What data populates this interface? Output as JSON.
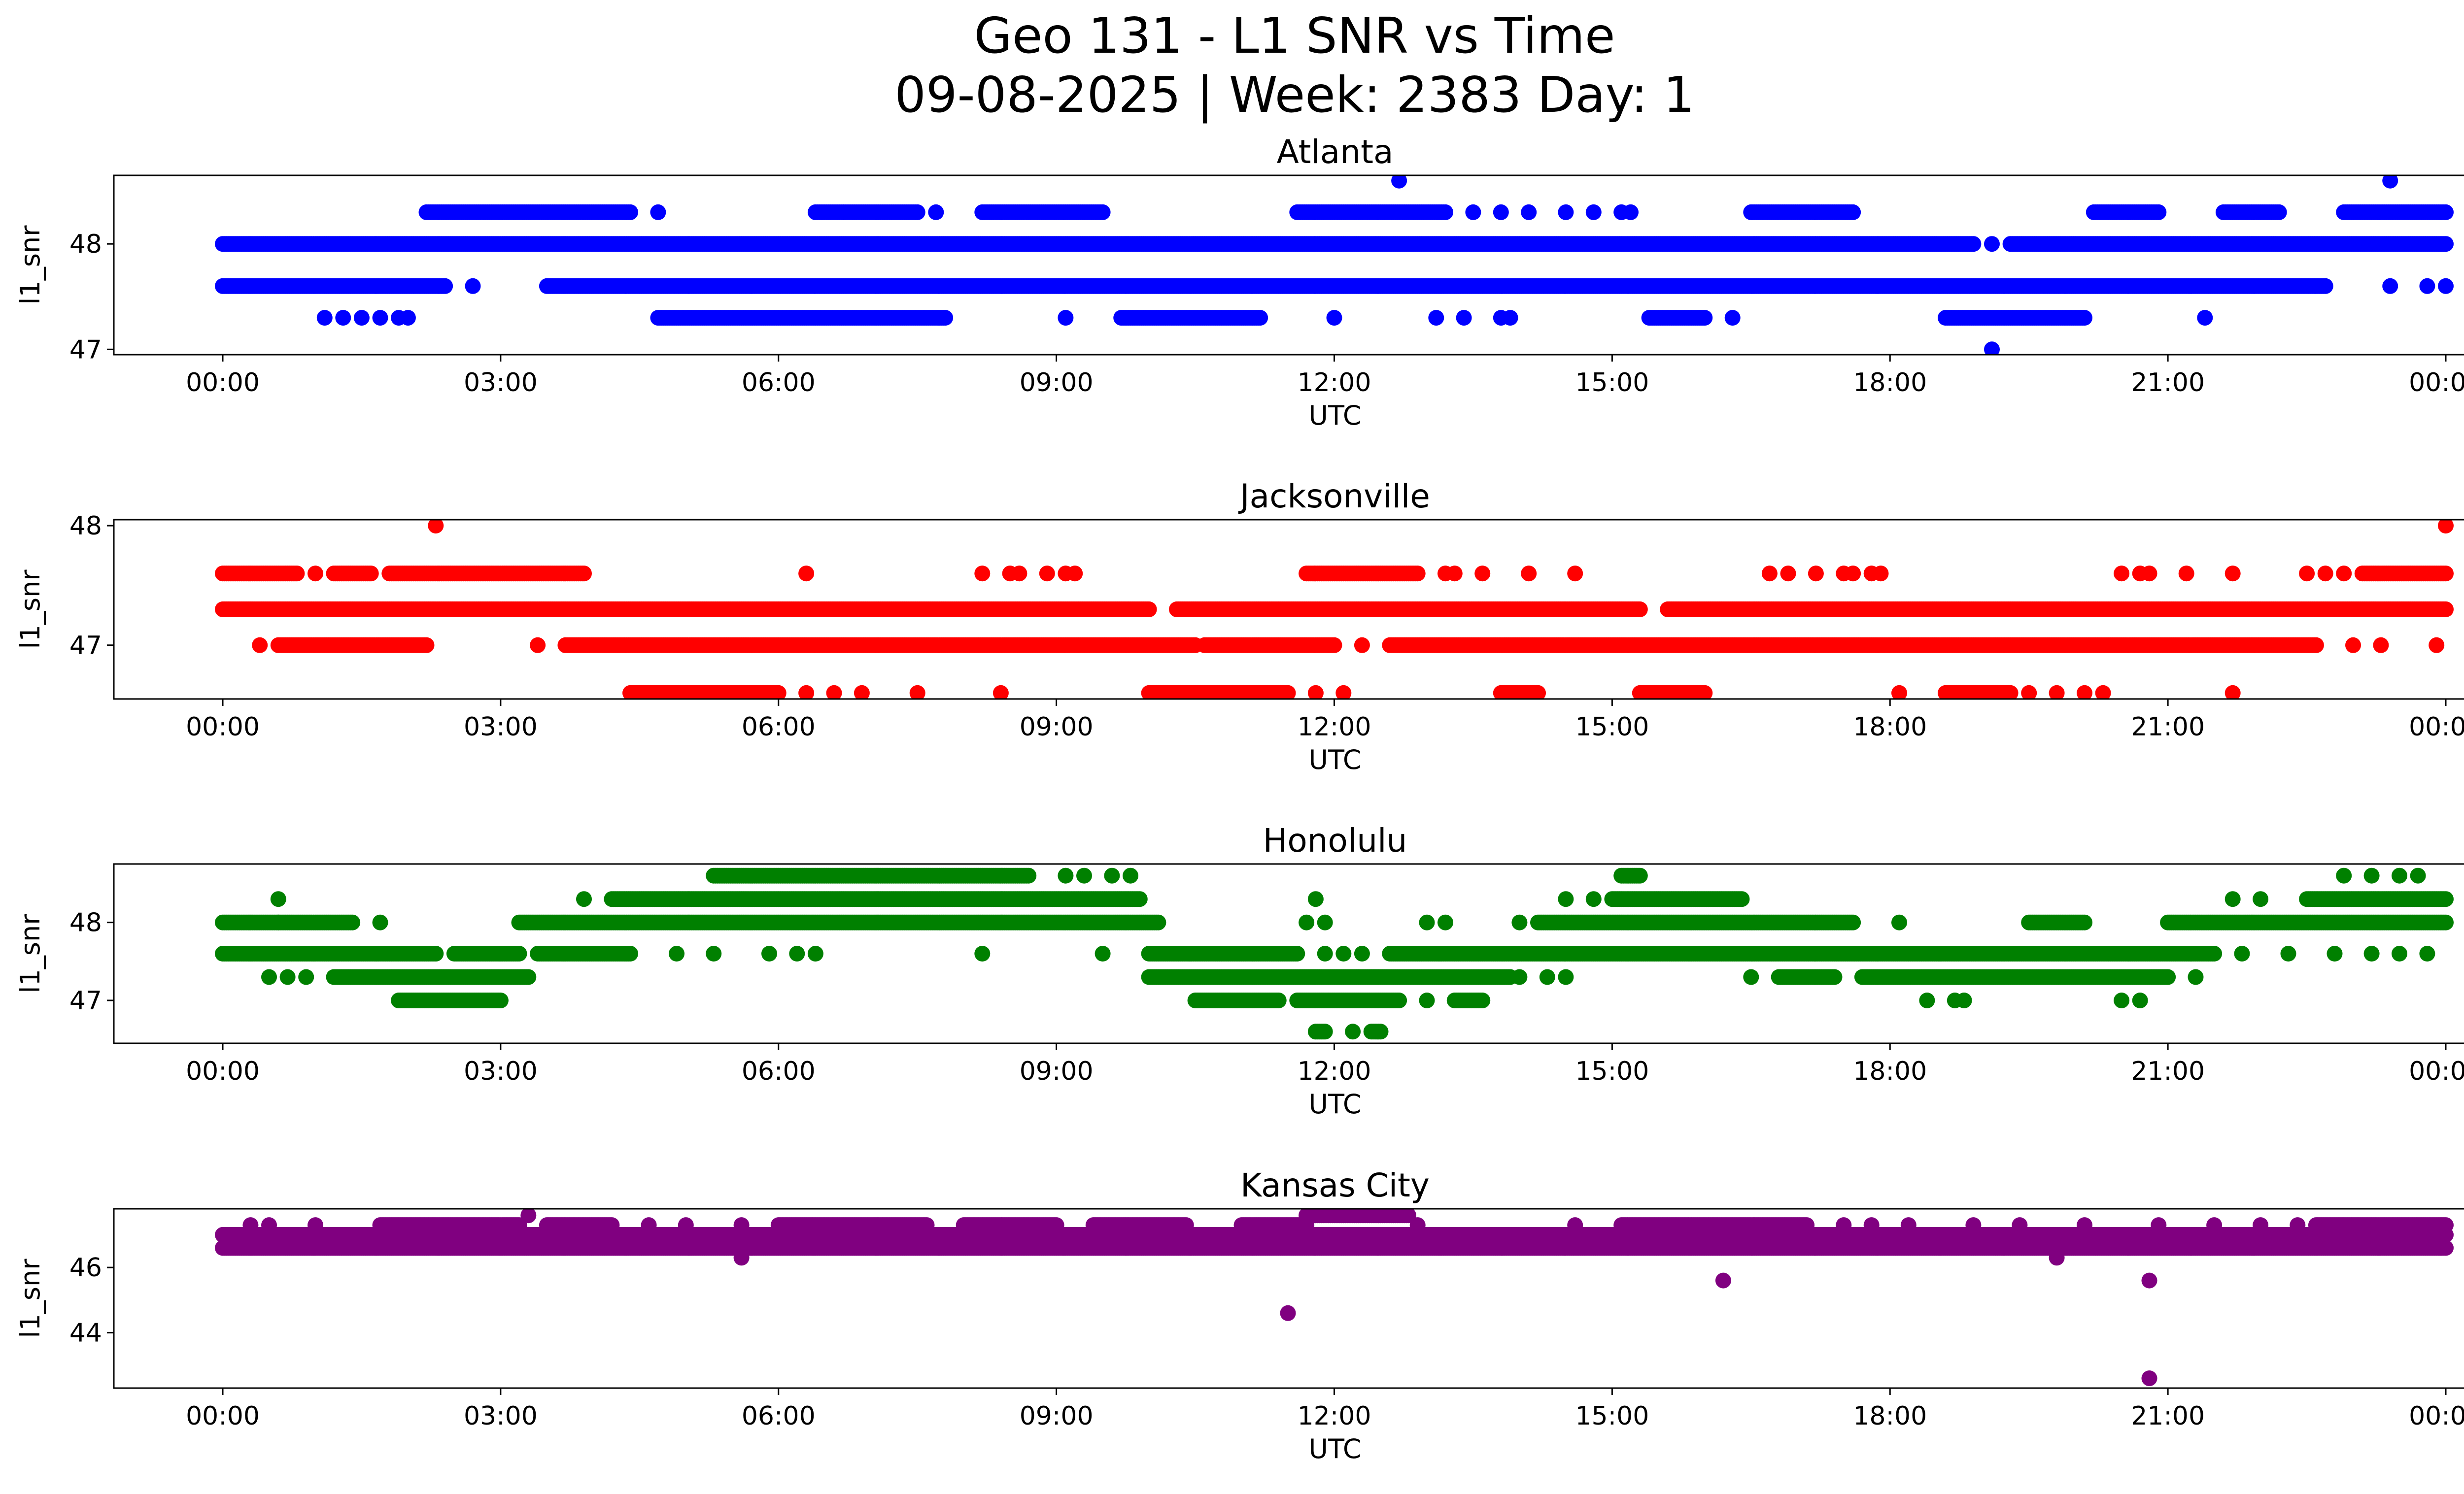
{
  "figure": {
    "title_line1": "Geo 131 - L1 SNR vs Time",
    "title_line2": "09-08-2025 | Week: 2383 Day: 1"
  },
  "chart_data": [
    {
      "type": "scatter",
      "title": "Atlanta",
      "xlabel": "UTC",
      "ylabel": "l1_snr",
      "color": "#0000ff",
      "xlim": [
        -0.4,
        24.4
      ],
      "ylim": [
        46.95,
        48.65
      ],
      "yticks": [
        47,
        48
      ],
      "xtick_labels": [
        "00:00",
        "03:00",
        "06:00",
        "09:00",
        "12:00",
        "15:00",
        "18:00",
        "21:00",
        "00:00"
      ],
      "series": [
        {
          "y": 48.0,
          "x_ranges": [
            [
              0.0,
              18.9
            ],
            [
              19.3,
              24.0
            ]
          ],
          "x": [
            19.1
          ]
        },
        {
          "y": 47.6,
          "x_ranges": [
            [
              0.0,
              2.4
            ],
            [
              3.5,
              22.7
            ]
          ],
          "x": [
            2.7,
            23.4,
            23.8,
            24.0
          ]
        },
        {
          "y": 48.3,
          "x_ranges": [
            [
              2.2,
              4.4
            ],
            [
              6.4,
              7.5
            ],
            [
              8.2,
              9.5
            ],
            [
              11.6,
              13.2
            ],
            [
              16.5,
              17.6
            ],
            [
              20.2,
              20.9
            ],
            [
              21.6,
              22.2
            ],
            [
              22.9,
              24.0
            ]
          ],
          "x": [
            4.7,
            6.7,
            7.7,
            13.5,
            13.8,
            14.1,
            14.5,
            14.8,
            15.1,
            15.2
          ]
        },
        {
          "y": 47.3,
          "x_ranges": [
            [
              4.7,
              7.8
            ],
            [
              9.7,
              11.2
            ],
            [
              15.4,
              16.0
            ],
            [
              18.6,
              20.1
            ]
          ],
          "x": [
            1.1,
            1.3,
            1.5,
            1.7,
            1.9,
            2.0,
            9.1,
            12.0,
            13.1,
            13.4,
            13.8,
            13.9,
            16.3,
            21.4
          ]
        },
        {
          "y": 48.6,
          "x_ranges": [],
          "x": [
            12.7,
            23.4
          ]
        },
        {
          "y": 47.0,
          "x_ranges": [],
          "x": [
            19.1
          ]
        }
      ]
    },
    {
      "type": "scatter",
      "title": "Jacksonville",
      "xlabel": "UTC",
      "ylabel": "l1_snr",
      "color": "#ff0000",
      "xlim": [
        -0.4,
        24.4
      ],
      "ylim": [
        46.55,
        48.05
      ],
      "yticks": [
        47,
        48
      ],
      "xtick_labels": [
        "00:00",
        "03:00",
        "06:00",
        "09:00",
        "12:00",
        "15:00",
        "18:00",
        "21:00",
        "00:00"
      ],
      "series": [
        {
          "y": 47.3,
          "x_ranges": [
            [
              0.0,
              10.0
            ],
            [
              10.3,
              15.3
            ],
            [
              15.6,
              24.0
            ]
          ],
          "x": []
        },
        {
          "y": 47.6,
          "x_ranges": [
            [
              0.0,
              0.8
            ],
            [
              1.2,
              1.6
            ],
            [
              1.8,
              3.9
            ],
            [
              11.7,
              12.9
            ],
            [
              23.1,
              24.0
            ]
          ],
          "x": [
            1.0,
            6.3,
            8.2,
            8.5,
            8.6,
            8.9,
            9.1,
            9.2,
            13.2,
            13.3,
            13.6,
            14.1,
            14.6,
            16.7,
            16.9,
            17.2,
            17.5,
            17.6,
            17.8,
            17.9,
            20.5,
            20.7,
            20.8,
            21.2,
            21.7,
            22.5,
            22.7,
            22.9
          ]
        },
        {
          "y": 47.0,
          "x_ranges": [
            [
              0.6,
              2.2
            ],
            [
              3.7,
              10.5
            ],
            [
              10.6,
              12.0
            ],
            [
              12.6,
              22.6
            ]
          ],
          "x": [
            0.4,
            3.4,
            12.3,
            23.0,
            23.3,
            23.9
          ]
        },
        {
          "y": 46.6,
          "x_ranges": [
            [
              4.4,
              6.0
            ],
            [
              10.0,
              11.5
            ],
            [
              13.8,
              14.2
            ],
            [
              15.3,
              16.0
            ],
            [
              18.6,
              19.3
            ]
          ],
          "x": [
            6.3,
            6.6,
            6.9,
            7.5,
            8.4,
            11.8,
            12.1,
            18.1,
            19.5,
            19.8,
            20.1,
            20.3,
            21.7
          ]
        },
        {
          "y": 48.0,
          "x_ranges": [],
          "x": [
            2.3,
            24.0
          ]
        }
      ]
    },
    {
      "type": "scatter",
      "title": "Honolulu",
      "xlabel": "UTC",
      "ylabel": "l1_snr",
      "color": "#008000",
      "xlim": [
        -0.4,
        24.4
      ],
      "ylim": [
        46.45,
        48.75
      ],
      "yticks": [
        47,
        48
      ],
      "xtick_labels": [
        "00:00",
        "03:00",
        "06:00",
        "09:00",
        "12:00",
        "15:00",
        "18:00",
        "21:00",
        "00:00"
      ],
      "series": [
        {
          "y": 48.0,
          "x_ranges": [
            [
              0.0,
              1.4
            ],
            [
              3.2,
              10.1
            ],
            [
              14.2,
              17.6
            ],
            [
              19.5,
              20.1
            ],
            [
              21.0,
              24.0
            ]
          ],
          "x": [
            0.6,
            1.7,
            11.7,
            11.9,
            13.0,
            13.2,
            14.0,
            18.1
          ]
        },
        {
          "y": 47.6,
          "x_ranges": [
            [
              0.0,
              2.3
            ],
            [
              2.5,
              3.2
            ],
            [
              3.4,
              4.4
            ],
            [
              10.0,
              11.6
            ],
            [
              12.6,
              21.5
            ]
          ],
          "x": [
            4.9,
            5.3,
            5.9,
            6.2,
            6.4,
            8.2,
            9.5,
            11.9,
            12.1,
            12.3,
            21.8,
            22.3,
            22.8,
            23.2,
            23.5,
            23.8
          ]
        },
        {
          "y": 48.3,
          "x_ranges": [
            [
              4.2,
              9.9
            ],
            [
              15.0,
              16.4
            ],
            [
              22.5,
              24.0
            ]
          ],
          "x": [
            0.6,
            3.9,
            11.8,
            14.5,
            14.8,
            21.7,
            22.0
          ]
        },
        {
          "y": 48.6,
          "x_ranges": [
            [
              5.3,
              8.7
            ],
            [
              15.1,
              15.3
            ]
          ],
          "x": [
            9.1,
            9.3,
            9.6,
            9.8,
            22.9,
            23.2,
            23.5,
            23.7
          ]
        },
        {
          "y": 47.3,
          "x_ranges": [
            [
              1.2,
              3.3
            ],
            [
              10.0,
              13.9
            ],
            [
              16.8,
              17.4
            ],
            [
              17.7,
              21.0
            ]
          ],
          "x": [
            0.5,
            0.7,
            0.9,
            14.0,
            14.3,
            14.5,
            16.5,
            21.3
          ]
        },
        {
          "y": 47.0,
          "x_ranges": [
            [
              1.9,
              3.0
            ],
            [
              10.5,
              11.4
            ],
            [
              11.6,
              12.7
            ],
            [
              13.3,
              13.6
            ]
          ],
          "x": [
            13.0,
            18.4,
            18.7,
            18.8,
            20.5,
            20.7
          ]
        },
        {
          "y": 46.6,
          "x_ranges": [
            [
              11.8,
              11.9
            ],
            [
              12.4,
              12.5
            ]
          ],
          "x": [
            12.2
          ]
        }
      ]
    },
    {
      "type": "scatter",
      "title": "Kansas City",
      "xlabel": "UTC",
      "ylabel": "l1_snr",
      "color": "#800080",
      "xlim": [
        -0.4,
        24.4
      ],
      "ylim": [
        42.3,
        47.8
      ],
      "yticks": [
        44,
        46
      ],
      "xtick_labels": [
        "00:00",
        "03:00",
        "06:00",
        "09:00",
        "12:00",
        "15:00",
        "18:00",
        "21:00",
        "00:00"
      ],
      "series": [
        {
          "y": 46.6,
          "x_ranges": [
            [
              0.0,
              24.0
            ]
          ],
          "x": []
        },
        {
          "y": 47.0,
          "x_ranges": [
            [
              0.0,
              24.0
            ]
          ],
          "x": []
        },
        {
          "y": 47.3,
          "x_ranges": [
            [
              1.7,
              3.2
            ],
            [
              3.5,
              4.2
            ],
            [
              6.0,
              7.6
            ],
            [
              8.0,
              9.0
            ],
            [
              9.4,
              10.4
            ],
            [
              11.0,
              11.7
            ],
            [
              15.1,
              17.1
            ],
            [
              22.6,
              24.0
            ]
          ],
          "x": [
            0.3,
            0.5,
            1.0,
            4.6,
            5.0,
            5.6,
            12.9,
            14.6,
            17.5,
            17.8,
            18.2,
            18.9,
            19.4,
            20.1,
            20.9,
            21.5,
            22.0,
            22.4
          ]
        },
        {
          "y": 47.6,
          "x_ranges": [
            [
              11.7,
              12.8
            ]
          ],
          "x": [
            3.3
          ]
        },
        {
          "y": 46.3,
          "x_ranges": [],
          "x": [
            5.6,
            19.8
          ]
        },
        {
          "y": 44.6,
          "x_ranges": [],
          "x": [
            11.5
          ]
        },
        {
          "y": 45.6,
          "x_ranges": [],
          "x": [
            16.2,
            20.8
          ]
        },
        {
          "y": 42.6,
          "x_ranges": [],
          "x": [
            20.8
          ]
        }
      ]
    }
  ]
}
